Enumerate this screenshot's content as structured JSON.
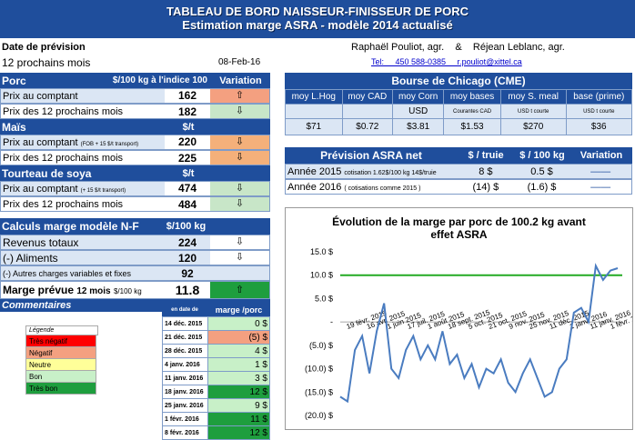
{
  "banner": {
    "title1": "TABLEAU DE BORD NAISSEUR-FINISSEUR DE PORC",
    "title2": "Estimation marge ASRA - modèle 2014 actualisé"
  },
  "header": {
    "date_label": "Date de prévision",
    "horizon": "12 prochains mois",
    "date": "08-Feb-16",
    "authors": "Raphaël Pouliot, agr.    &    Réjean Leblanc, agr.",
    "tel": "Tel:     450 588-0385     r.pouliot@xittel.ca"
  },
  "porc": {
    "title": "Porc",
    "unit": "$/100 kg à l'indice 100",
    "var_header": "Variation",
    "rows": [
      {
        "label": "Prix au comptant",
        "value": "162",
        "arrow": "up",
        "color": "#f4a080"
      },
      {
        "label": "Prix des 12 prochains mois",
        "value": "182",
        "arrow": "down",
        "color": "#c8e6c8"
      }
    ]
  },
  "mais": {
    "title": "Maïs",
    "unit": "$/t",
    "rows": [
      {
        "label": "Prix au comptant",
        "note": "(FOB + 15 $/t transport)",
        "value": "220",
        "arrow": "down",
        "color": "#f4b07a"
      },
      {
        "label": "Prix des 12 prochains mois",
        "value": "225",
        "arrow": "down",
        "color": "#f4b07a"
      }
    ]
  },
  "soya": {
    "title": "Tourteau de soya",
    "unit": "$/t",
    "rows": [
      {
        "label": "Prix au comptant",
        "note": "(+ 15 $/t transport)",
        "value": "474",
        "arrow": "down",
        "color": "#c8e6c8"
      },
      {
        "label": "Prix des 12 prochains mois",
        "value": "484",
        "arrow": "down",
        "color": "#c8e6c8"
      }
    ]
  },
  "calc": {
    "title": "Calculs marge  modèle N-F",
    "unit": "$/100 kg",
    "rows": [
      {
        "label": "Revenus totaux",
        "value": "224",
        "arrow": "down"
      },
      {
        "label": "(-) Aliments",
        "value": "120",
        "arrow": "down"
      },
      {
        "label": "(-) Autres charges variables et fixes",
        "value": "92",
        "arrow": ""
      }
    ],
    "marge_label": "Marge prévue",
    "marge_period": "12 mois",
    "marge_unit": "$/100 kg",
    "marge_value": "11.8",
    "marge_arrow": "up"
  },
  "commentaires": {
    "title": "Commentaires",
    "col_date": "en date de",
    "col_marge": "marge /porc"
  },
  "legend": {
    "title": "Légende",
    "items": [
      {
        "label": "Très négatif",
        "color": "#ff0000"
      },
      {
        "label": "Négatif",
        "color": "#f4a080"
      },
      {
        "label": "Neutre",
        "color": "#ffff99"
      },
      {
        "label": "Bon",
        "color": "#c8f0c8"
      },
      {
        "label": "Très bon",
        "color": "#1e9e3e"
      }
    ]
  },
  "history": [
    {
      "date": "14 déc. 2015",
      "value": "0",
      "unit": "$",
      "color": "#c8f0c8"
    },
    {
      "date": "21 déc. 2015",
      "value": "(5)",
      "unit": "$",
      "color": "#f4a080"
    },
    {
      "date": "28 déc. 2015",
      "value": "4",
      "unit": "$",
      "color": "#c8f0c8"
    },
    {
      "date": "4 janv. 2016",
      "value": "1",
      "unit": "$",
      "color": "#c8f0c8"
    },
    {
      "date": "11 janv. 2016",
      "value": "3",
      "unit": "$",
      "color": "#c8f0c8"
    },
    {
      "date": "18 janv. 2016",
      "value": "12",
      "unit": "$",
      "color": "#1e9e3e"
    },
    {
      "date": "25 janv. 2016",
      "value": "9",
      "unit": "$",
      "color": "#c8f0c8"
    },
    {
      "date": "1 févr. 2016",
      "value": "11",
      "unit": "$",
      "color": "#1e9e3e"
    },
    {
      "date": "8 févr. 2016",
      "value": "12",
      "unit": "$",
      "color": "#1e9e3e"
    }
  ],
  "cme": {
    "title": "Bourse de Chicago (CME)",
    "headers": [
      "moy L.Hog",
      "moy CAD",
      "moy Corn",
      "moy bases",
      "moy S. meal",
      "base (prime)"
    ],
    "sub": [
      "",
      "",
      "USD",
      "Courantes CAD",
      "USD t courte",
      "USD t courte"
    ],
    "values": [
      "$71",
      "$0.72",
      "$3.81",
      "$1.53",
      "$270",
      "$36"
    ]
  },
  "asra": {
    "title": "Prévision ASRA net",
    "col1": "$ / truie",
    "col2": "$ / 100 kg",
    "col3": "Variation",
    "rows": [
      {
        "label": "Année 2015",
        "note": "cotisation 1.62$/100 kg 14$/truie",
        "v1": "8  $",
        "v2": "0.5  $"
      },
      {
        "label": "Année 2016",
        "note": "( cotisations comme 2015 )",
        "v1": "(14) $",
        "v2": "(1.6) $"
      }
    ]
  },
  "chart_data": {
    "type": "line",
    "title": "Évolution de la marge par porc de 100.2 kg avant effet ASRA",
    "x_labels": [
      "19 févr. 2015",
      "16 avr. 2015",
      "1 juin 2015",
      "17 juil. 2015",
      "1 août 2015",
      "18 sept. 2015",
      "5 oct. 2015",
      "21 oct. 2015",
      "9 nov. 2015",
      "25 nov. 2015",
      "11 déc. 2015",
      "1 janv. 2016",
      "11 janv. 2016",
      "1 févr. 2016"
    ],
    "y_ticks": [
      "15.0 $",
      "10.0 $",
      "5.0 $",
      "-",
      "(5.0) $",
      "(10.0) $",
      "(15.0) $",
      "(20.0) $"
    ],
    "ylim": [
      -20,
      15
    ],
    "reference_line": 10,
    "series": [
      {
        "values": [
          -16,
          -17,
          -6,
          -3,
          -11,
          -2,
          4,
          -10,
          -12,
          -6,
          -3,
          -8,
          -5,
          -8,
          -2,
          -9,
          -7,
          -12,
          -9,
          -14,
          -10,
          -11,
          -8,
          -13,
          -15,
          -11,
          -8,
          -12,
          -16,
          -15,
          -10,
          -8,
          2,
          3,
          0,
          12,
          9,
          11,
          11.5
        ]
      }
    ]
  }
}
